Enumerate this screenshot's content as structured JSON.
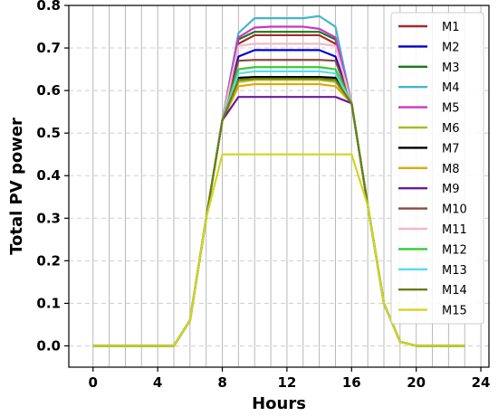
{
  "chart_data": {
    "type": "line",
    "title": "",
    "xlabel": "Hours",
    "ylabel": "Total PV power",
    "xlim": [
      -1.5,
      24.5
    ],
    "ylim": [
      -0.05,
      0.8
    ],
    "xticks": [
      0,
      4,
      8,
      12,
      16,
      20,
      24
    ],
    "yticks": [
      0.0,
      0.1,
      0.2,
      0.3,
      0.4,
      0.5,
      0.6,
      0.7,
      0.8
    ],
    "xtick_labels": [
      "0",
      "4",
      "8",
      "12",
      "16",
      "20",
      "24"
    ],
    "ytick_labels": [
      "0.0",
      "0.1",
      "0.2",
      "0.3",
      "0.4",
      "0.5",
      "0.6",
      "0.7",
      "0.8"
    ],
    "grid": "dashed",
    "vertical_grid_every": 1,
    "legend_position": "top-right",
    "x": [
      0,
      1,
      2,
      3,
      4,
      5,
      6,
      7,
      8,
      9,
      10,
      11,
      12,
      13,
      14,
      15,
      16,
      17,
      18,
      19,
      20,
      21,
      22,
      23
    ],
    "base_shape": [
      0,
      0,
      0,
      0,
      0,
      0,
      0.06,
      0.3,
      0.53,
      null,
      null,
      null,
      null,
      null,
      null,
      null,
      0.57,
      0.33,
      0.1,
      0.01,
      0,
      0,
      0,
      0
    ],
    "series": [
      {
        "name": "M1",
        "color": "#a52a2a",
        "values": [
          0,
          0,
          0,
          0,
          0,
          0,
          0.06,
          0.3,
          0.53,
          0.71,
          0.73,
          0.73,
          0.73,
          0.73,
          0.73,
          0.71,
          0.57,
          0.33,
          0.1,
          0.01,
          0,
          0,
          0,
          0
        ]
      },
      {
        "name": "M2",
        "color": "#0000cc",
        "values": [
          0,
          0,
          0,
          0,
          0,
          0,
          0.06,
          0.3,
          0.53,
          0.68,
          0.695,
          0.695,
          0.695,
          0.695,
          0.695,
          0.68,
          0.57,
          0.33,
          0.1,
          0.01,
          0,
          0,
          0,
          0
        ]
      },
      {
        "name": "M3",
        "color": "#1a7a1a",
        "values": [
          0,
          0,
          0,
          0,
          0,
          0,
          0.06,
          0.3,
          0.53,
          0.72,
          0.738,
          0.738,
          0.738,
          0.738,
          0.738,
          0.72,
          0.57,
          0.33,
          0.1,
          0.01,
          0,
          0,
          0,
          0
        ]
      },
      {
        "name": "M4",
        "color": "#46b5c8",
        "values": [
          0,
          0,
          0,
          0,
          0,
          0,
          0.06,
          0.3,
          0.53,
          0.735,
          0.77,
          0.77,
          0.77,
          0.77,
          0.775,
          0.75,
          0.57,
          0.33,
          0.1,
          0.01,
          0,
          0,
          0,
          0
        ]
      },
      {
        "name": "M5",
        "color": "#cc33cc",
        "values": [
          0,
          0,
          0,
          0,
          0,
          0,
          0.06,
          0.3,
          0.53,
          0.725,
          0.748,
          0.75,
          0.75,
          0.75,
          0.745,
          0.725,
          0.57,
          0.33,
          0.1,
          0.01,
          0,
          0,
          0,
          0
        ]
      },
      {
        "name": "M6",
        "color": "#aabb22",
        "values": [
          0,
          0,
          0,
          0,
          0,
          0,
          0.06,
          0.3,
          0.53,
          0.62,
          0.625,
          0.625,
          0.625,
          0.625,
          0.625,
          0.62,
          0.57,
          0.33,
          0.1,
          0.01,
          0,
          0,
          0,
          0
        ]
      },
      {
        "name": "M7",
        "color": "#000000",
        "values": [
          0,
          0,
          0,
          0,
          0,
          0,
          0.06,
          0.3,
          0.53,
          0.63,
          0.632,
          0.632,
          0.632,
          0.632,
          0.632,
          0.63,
          0.57,
          0.33,
          0.1,
          0.01,
          0,
          0,
          0,
          0
        ]
      },
      {
        "name": "M8",
        "color": "#e0a800",
        "values": [
          0,
          0,
          0,
          0,
          0,
          0,
          0.06,
          0.3,
          0.53,
          0.61,
          0.615,
          0.615,
          0.615,
          0.615,
          0.615,
          0.61,
          0.57,
          0.33,
          0.1,
          0.01,
          0,
          0,
          0,
          0
        ]
      },
      {
        "name": "M9",
        "color": "#6a1b9a",
        "values": [
          0,
          0,
          0,
          0,
          0,
          0,
          0.06,
          0.3,
          0.53,
          0.585,
          0.585,
          0.585,
          0.585,
          0.585,
          0.585,
          0.585,
          0.57,
          0.33,
          0.1,
          0.01,
          0,
          0,
          0,
          0
        ]
      },
      {
        "name": "M10",
        "color": "#8b4a3c",
        "values": [
          0,
          0,
          0,
          0,
          0,
          0,
          0.06,
          0.3,
          0.53,
          0.67,
          0.672,
          0.672,
          0.672,
          0.672,
          0.672,
          0.67,
          0.57,
          0.33,
          0.1,
          0.01,
          0,
          0,
          0,
          0
        ]
      },
      {
        "name": "M11",
        "color": "#f5b8c8",
        "values": [
          0,
          0,
          0,
          0,
          0,
          0,
          0.06,
          0.3,
          0.53,
          0.705,
          0.71,
          0.71,
          0.71,
          0.71,
          0.71,
          0.705,
          0.57,
          0.33,
          0.1,
          0.01,
          0,
          0,
          0,
          0
        ]
      },
      {
        "name": "M12",
        "color": "#33cc33",
        "values": [
          0,
          0,
          0,
          0,
          0,
          0,
          0.06,
          0.3,
          0.53,
          0.65,
          0.655,
          0.655,
          0.655,
          0.655,
          0.655,
          0.65,
          0.57,
          0.33,
          0.1,
          0.01,
          0,
          0,
          0,
          0
        ]
      },
      {
        "name": "M13",
        "color": "#55ddee",
        "values": [
          0,
          0,
          0,
          0,
          0,
          0,
          0.06,
          0.3,
          0.53,
          0.64,
          0.645,
          0.645,
          0.645,
          0.645,
          0.645,
          0.64,
          0.57,
          0.33,
          0.1,
          0.01,
          0,
          0,
          0,
          0
        ]
      },
      {
        "name": "M14",
        "color": "#6b7d10",
        "values": [
          0,
          0,
          0,
          0,
          0,
          0,
          0.06,
          0.3,
          0.53,
          0.625,
          0.628,
          0.628,
          0.628,
          0.628,
          0.628,
          0.625,
          0.57,
          0.33,
          0.1,
          0.01,
          0,
          0,
          0,
          0
        ]
      },
      {
        "name": "M15",
        "color": "#d4d420",
        "values": [
          0,
          0,
          0,
          0,
          0,
          0,
          0.06,
          0.3,
          0.45,
          0.45,
          0.45,
          0.45,
          0.45,
          0.45,
          0.45,
          0.45,
          0.45,
          0.33,
          0.1,
          0.01,
          0,
          0,
          0,
          0
        ]
      }
    ]
  }
}
